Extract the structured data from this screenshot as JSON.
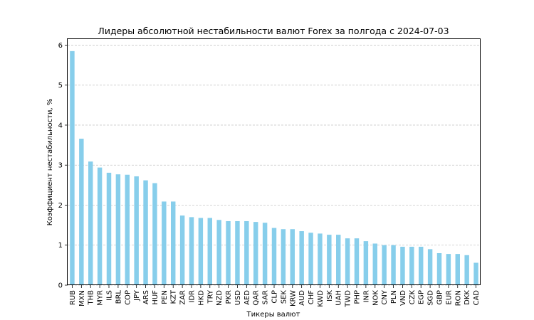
{
  "chart_data": {
    "type": "bar",
    "title": "Лидеры абсолютной нестабильности валют Forex за полгода с 2024-07-03",
    "xlabel": "Тикеры валют",
    "ylabel": "Коэффициент нестабильности, %",
    "ylim": [
      0,
      6.15
    ],
    "yticks": [
      0,
      1,
      2,
      3,
      4,
      5,
      6
    ],
    "grid": "y-dashed",
    "bar_color": "#87ceeb",
    "categories": [
      "RUB",
      "MXN",
      "THB",
      "MYR",
      "ILS",
      "BRL",
      "COP",
      "JPY",
      "ARS",
      "HUF",
      "PEN",
      "KZT",
      "ZAR",
      "IDR",
      "HKD",
      "TRY",
      "NZD",
      "PKR",
      "USD",
      "AED",
      "QAR",
      "SAR",
      "CLP",
      "SEK",
      "KRW",
      "AUD",
      "CHF",
      "KWD",
      "ISK",
      "UAH",
      "TWD",
      "PHP",
      "INR",
      "NOK",
      "CNY",
      "PLN",
      "VND",
      "CZK",
      "EGP",
      "SGD",
      "GBP",
      "EUR",
      "RON",
      "DKK",
      "CAD"
    ],
    "values": [
      5.85,
      3.66,
      3.09,
      2.94,
      2.81,
      2.77,
      2.76,
      2.72,
      2.62,
      2.55,
      2.09,
      2.09,
      1.74,
      1.7,
      1.68,
      1.68,
      1.63,
      1.6,
      1.6,
      1.6,
      1.58,
      1.56,
      1.43,
      1.4,
      1.4,
      1.35,
      1.31,
      1.29,
      1.26,
      1.26,
      1.17,
      1.17,
      1.1,
      1.04,
      1.0,
      1.0,
      0.96,
      0.96,
      0.96,
      0.9,
      0.8,
      0.78,
      0.78,
      0.75,
      0.56
    ]
  }
}
